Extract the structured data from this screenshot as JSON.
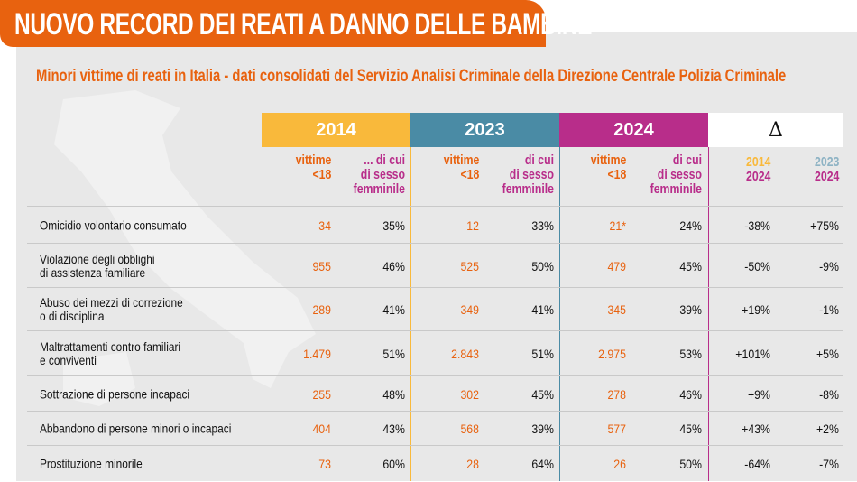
{
  "title": "NUOVO RECORD DEI REATI A DANNO DELLE BAMBINE",
  "subtitle": "Minori vittime di reati in Italia - dati consolidati del Servizio Analisi Criminale della Direzione Centrale Polizia Criminale",
  "colors": {
    "orange": "#e8620f",
    "y2014": "#f9b93b",
    "y2023": "#4a8ba5",
    "y2024": "#b82d8a"
  },
  "chart_data": {
    "type": "table",
    "groups": [
      "2014",
      "2023",
      "2024",
      "Δ"
    ],
    "subheaders": {
      "victims": [
        "vittime",
        "<18"
      ],
      "female_2014": [
        "... di cui",
        "di sesso",
        "femminile"
      ],
      "female": [
        "di cui",
        "di sesso",
        "femminile"
      ],
      "delta_a": [
        "2014",
        "2024"
      ],
      "delta_b": [
        "2023",
        "2024"
      ]
    },
    "rows": [
      {
        "label": [
          "Omicidio volontario consumato"
        ],
        "v2014": "34",
        "f2014": "35%",
        "v2023": "12",
        "f2023": "33%",
        "v2024": "21*",
        "f2024": "24%",
        "d14_24": "-38%",
        "d23_24": "+75%"
      },
      {
        "label": [
          "Violazione degli obblighi",
          "di assistenza familiare"
        ],
        "v2014": "955",
        "f2014": "46%",
        "v2023": "525",
        "f2023": "50%",
        "v2024": "479",
        "f2024": "45%",
        "d14_24": "-50%",
        "d23_24": "-9%"
      },
      {
        "label": [
          "Abuso dei mezzi di correzione",
          "o di disciplina"
        ],
        "v2014": "289",
        "f2014": "41%",
        "v2023": "349",
        "f2023": "41%",
        "v2024": "345",
        "f2024": "39%",
        "d14_24": "+19%",
        "d23_24": "-1%"
      },
      {
        "label": [
          "Maltrattamenti contro familiari",
          "e conviventi"
        ],
        "v2014": "1.479",
        "f2014": "51%",
        "v2023": "2.843",
        "f2023": "51%",
        "v2024": "2.975",
        "f2024": "53%",
        "d14_24": "+101%",
        "d23_24": "+5%"
      },
      {
        "label": [
          "Sottrazione di persone incapaci"
        ],
        "v2014": "255",
        "f2014": "48%",
        "v2023": "302",
        "f2023": "45%",
        "v2024": "278",
        "f2024": "46%",
        "d14_24": "+9%",
        "d23_24": "-8%"
      },
      {
        "label": [
          "Abbandono di persone minori o incapaci"
        ],
        "v2014": "404",
        "f2014": "43%",
        "v2023": "568",
        "f2023": "39%",
        "v2024": "577",
        "f2024": "45%",
        "d14_24": "+43%",
        "d23_24": "+2%"
      },
      {
        "label": [
          "Prostituzione minorile"
        ],
        "v2014": "73",
        "f2014": "60%",
        "v2023": "28",
        "f2023": "64%",
        "v2024": "26",
        "f2024": "50%",
        "d14_24": "-64%",
        "d23_24": "-7%"
      }
    ]
  }
}
